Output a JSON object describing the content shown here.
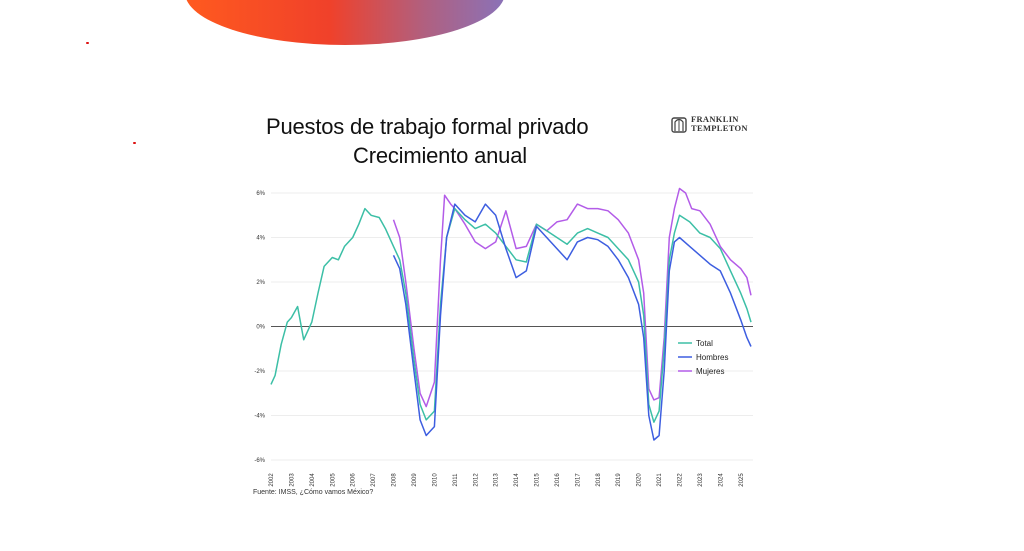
{
  "title_line1": "Puestos de trabajo formal privado",
  "title_line2": "Crecimiento anual",
  "logo": {
    "line1": "FRANKLIN",
    "line2": "TEMPLETON"
  },
  "source": "Fuente: IMSS, ¿Cómo vamos México?",
  "colors": {
    "total": "#3cbfa6",
    "hombres": "#3d5ee0",
    "mujeres": "#b35ce8",
    "accent_orange": "#ff5a1f"
  },
  "chart_data": {
    "type": "line",
    "title": "Puestos de trabajo formal privado Crecimiento anual",
    "xlabel": "",
    "ylabel": "",
    "xlim": [
      2002,
      2025.6
    ],
    "ylim": [
      -6,
      6
    ],
    "y_tick_labels": [
      "6%",
      "4%",
      "2%",
      "0%",
      "-2%",
      "-4%",
      "-6%"
    ],
    "y_tick_values": [
      6,
      4,
      2,
      0,
      -2,
      -4,
      -6
    ],
    "x_tick_labels": [
      "2002",
      "2003",
      "2004",
      "2005",
      "2006",
      "2007",
      "2008",
      "2009",
      "2010",
      "2011",
      "2012",
      "2013",
      "2014",
      "2015",
      "2016",
      "2017",
      "2018",
      "2019",
      "2020",
      "2021",
      "2022",
      "2023",
      "2024",
      "2025"
    ],
    "legend_position": "lower-right",
    "series": [
      {
        "name": "Total",
        "x": [
          2002.0,
          2002.2,
          2002.5,
          2002.8,
          2003.0,
          2003.3,
          2003.6,
          2004.0,
          2004.3,
          2004.6,
          2005.0,
          2005.3,
          2005.6,
          2006.0,
          2006.3,
          2006.6,
          2006.9,
          2007.3,
          2007.6,
          2008.0,
          2008.3,
          2008.6,
          2009.0,
          2009.3,
          2009.6,
          2010.0,
          2010.3,
          2010.6,
          2011.0,
          2011.5,
          2012.0,
          2012.5,
          2013.0,
          2013.5,
          2014.0,
          2014.5,
          2015.0,
          2015.5,
          2016.0,
          2016.5,
          2017.0,
          2017.5,
          2018.0,
          2018.5,
          2019.0,
          2019.5,
          2020.0,
          2020.25,
          2020.5,
          2020.75,
          2021.0,
          2021.25,
          2021.5,
          2021.75,
          2022.0,
          2022.5,
          2023.0,
          2023.5,
          2024.0,
          2024.5,
          2025.0,
          2025.3,
          2025.5
        ],
        "values": [
          -2.6,
          -2.2,
          -0.8,
          0.2,
          0.4,
          0.9,
          -0.6,
          0.2,
          1.5,
          2.7,
          3.1,
          3.0,
          3.6,
          4.0,
          4.6,
          5.3,
          5.0,
          4.9,
          4.4,
          3.6,
          3.0,
          1.5,
          -1.5,
          -3.5,
          -4.2,
          -3.8,
          1.0,
          4.0,
          5.3,
          4.8,
          4.4,
          4.6,
          4.2,
          3.6,
          3.0,
          2.9,
          4.6,
          4.3,
          4.0,
          3.7,
          4.2,
          4.4,
          4.2,
          4.0,
          3.5,
          3.0,
          2.0,
          0.5,
          -3.5,
          -4.3,
          -3.8,
          -1.0,
          3.0,
          4.2,
          5.0,
          4.7,
          4.2,
          4.0,
          3.5,
          2.5,
          1.5,
          0.8,
          0.2
        ]
      },
      {
        "name": "Hombres",
        "x": [
          2008.0,
          2008.3,
          2008.6,
          2009.0,
          2009.3,
          2009.6,
          2010.0,
          2010.3,
          2010.6,
          2011.0,
          2011.5,
          2012.0,
          2012.5,
          2013.0,
          2013.5,
          2014.0,
          2014.5,
          2015.0,
          2015.5,
          2016.0,
          2016.5,
          2017.0,
          2017.5,
          2018.0,
          2018.5,
          2019.0,
          2019.5,
          2020.0,
          2020.25,
          2020.5,
          2020.75,
          2021.0,
          2021.25,
          2021.5,
          2021.75,
          2022.0,
          2022.5,
          2023.0,
          2023.5,
          2024.0,
          2024.5,
          2025.0,
          2025.3,
          2025.5
        ],
        "values": [
          3.2,
          2.6,
          1.0,
          -2.0,
          -4.2,
          -4.9,
          -4.5,
          0.5,
          4.0,
          5.5,
          5.0,
          4.7,
          5.5,
          5.0,
          3.5,
          2.2,
          2.5,
          4.5,
          4.0,
          3.5,
          3.0,
          3.8,
          4.0,
          3.9,
          3.6,
          3.0,
          2.2,
          1.0,
          -0.5,
          -4.0,
          -5.1,
          -4.9,
          -2.0,
          2.5,
          3.8,
          4.0,
          3.6,
          3.2,
          2.8,
          2.5,
          1.5,
          0.3,
          -0.5,
          -0.9
        ]
      },
      {
        "name": "Mujeres",
        "x": [
          2008.0,
          2008.3,
          2008.6,
          2009.0,
          2009.3,
          2009.6,
          2010.0,
          2010.3,
          2010.5,
          2010.8,
          2011.0,
          2011.5,
          2012.0,
          2012.5,
          2013.0,
          2013.5,
          2014.0,
          2014.5,
          2015.0,
          2015.5,
          2016.0,
          2016.5,
          2017.0,
          2017.5,
          2018.0,
          2018.5,
          2019.0,
          2019.5,
          2020.0,
          2020.25,
          2020.5,
          2020.75,
          2021.0,
          2021.25,
          2021.5,
          2021.75,
          2022.0,
          2022.3,
          2022.6,
          2023.0,
          2023.5,
          2024.0,
          2024.5,
          2025.0,
          2025.3,
          2025.5
        ],
        "values": [
          4.8,
          4.0,
          2.0,
          -1.0,
          -3.0,
          -3.6,
          -2.5,
          3.0,
          5.9,
          5.5,
          5.3,
          4.6,
          3.8,
          3.5,
          3.8,
          5.2,
          3.5,
          3.6,
          4.6,
          4.3,
          4.7,
          4.8,
          5.5,
          5.3,
          5.3,
          5.2,
          4.8,
          4.2,
          3.0,
          1.5,
          -2.8,
          -3.3,
          -3.2,
          -0.5,
          4.0,
          5.3,
          6.2,
          6.0,
          5.3,
          5.2,
          4.6,
          3.6,
          3.0,
          2.6,
          2.2,
          1.4
        ]
      }
    ]
  }
}
